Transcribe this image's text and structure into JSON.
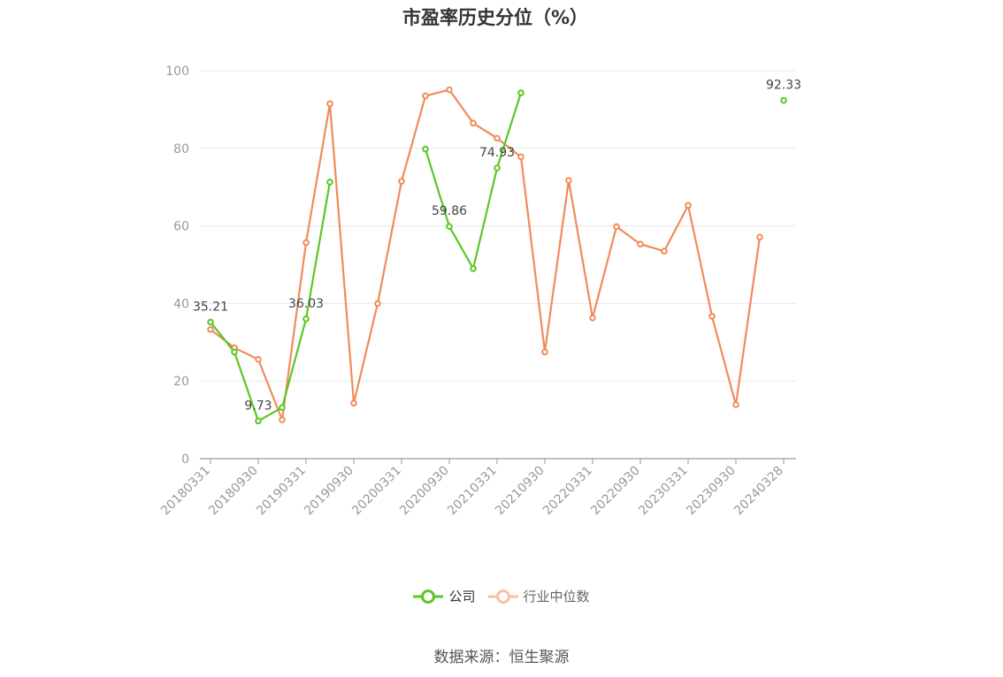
{
  "title": "市盈率历史分位（%）",
  "source": "数据来源：恒生聚源",
  "colors": {
    "company": "#5ac725",
    "industry": "#f08b5a",
    "industry_legend": "#f6c0a4",
    "grid": "#e6e8ef",
    "axis": "#999999",
    "tick_text": "#999999",
    "label_text": "#444444"
  },
  "chart_data": {
    "type": "line",
    "title": "市盈率历史分位（%）",
    "xlabel": "",
    "ylabel": "",
    "ylim": [
      0,
      100
    ],
    "yticks": [
      0,
      20,
      40,
      60,
      80,
      100
    ],
    "grid": true,
    "legend_position": "bottom",
    "categories": [
      "20180331",
      "20180630",
      "20180930",
      "20181231",
      "20190331",
      "20190630",
      "20190930",
      "20191231",
      "20200331",
      "20200630",
      "20200930",
      "20201231",
      "20210331",
      "20210630",
      "20210930",
      "20211231",
      "20220331",
      "20220630",
      "20220930",
      "20221231",
      "20230331",
      "20230630",
      "20230930",
      "20231231",
      "20240328"
    ],
    "x_tick_labels": [
      "20180331",
      "20180930",
      "20190331",
      "20190930",
      "20200331",
      "20200930",
      "20210331",
      "20210930",
      "20220331",
      "20220930",
      "20230331",
      "20230930",
      "20240328"
    ],
    "series": [
      {
        "name": "公司",
        "values": [
          35.21,
          27.5,
          9.73,
          13.2,
          36.03,
          71.3,
          null,
          null,
          null,
          79.8,
          59.86,
          49.0,
          74.93,
          94.3,
          null,
          null,
          null,
          null,
          null,
          null,
          null,
          null,
          null,
          null,
          92.33
        ],
        "data_labels": {
          "0": "35.21",
          "2": "9.73",
          "4": "36.03",
          "10": "59.86",
          "12": "74.93",
          "24": "92.33"
        }
      },
      {
        "name": "行业中位数",
        "values": [
          33.3,
          28.6,
          25.6,
          10.0,
          55.7,
          91.5,
          14.3,
          40.0,
          71.5,
          93.5,
          95.1,
          86.5,
          82.6,
          77.8,
          27.5,
          71.7,
          36.3,
          59.8,
          55.3,
          53.5,
          65.3,
          36.7,
          13.9,
          57.1,
          null
        ]
      }
    ]
  }
}
